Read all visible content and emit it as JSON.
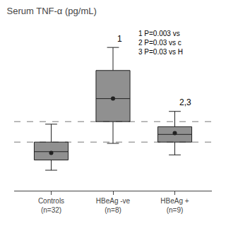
{
  "chart_data": {
    "type": "box",
    "title": "Serum TNF-α (pg/mL)",
    "categories": [
      "Controls\n(n=32)",
      "HBeAg -ve\n(n=8)",
      "HBeAg +\n(n=9)"
    ],
    "q1": [
      0.12,
      0.42,
      0.26
    ],
    "median": [
      0.185,
      0.6,
      0.32
    ],
    "q3": [
      0.26,
      0.82,
      0.38
    ],
    "whisker_low": [
      0.04,
      0.25,
      0.16
    ],
    "whisker_high": [
      0.4,
      1.0,
      0.5
    ],
    "mean": [
      0.175,
      0.6,
      0.33
    ],
    "color": "#222222",
    "reference_lines": [
      0.42,
      0.26
    ],
    "annotations": [
      {
        "text": "1",
        "category": "HBeAg -ve\n(n=8)",
        "y": 1.02
      },
      {
        "text": "2,3",
        "category": "HBeAg +\n(n=9)",
        "y": 0.52
      }
    ],
    "notes": [
      "1 P=0.003 vs",
      "2 P=0.03 vs c",
      "3 P=0.03 vs H"
    ],
    "ylim": [
      -0.12,
      1.15
    ],
    "tick_labels": "x",
    "grid": false
  }
}
